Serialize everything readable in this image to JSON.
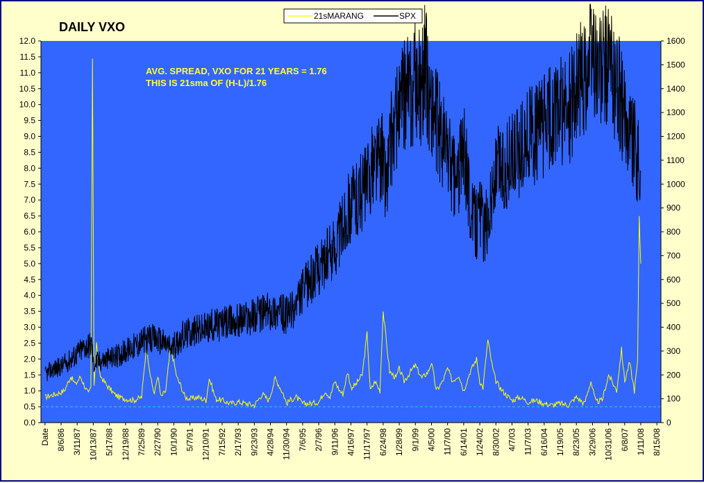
{
  "chart_data": {
    "type": "line",
    "title": "DAILY VXO",
    "annotations": [
      "AVG. SPREAD, VXO FOR 21 YEARS = 1.76",
      "THIS IS 21sma OF (H-L)/1.76"
    ],
    "legend": {
      "position": "top-center",
      "entries": [
        "21sMARANG",
        "SPX"
      ]
    },
    "x_tick_labels": [
      "Date",
      "8/6/86",
      "3/11/87",
      "10/13/87",
      "5/17/88",
      "12/19/88",
      "7/25/89",
      "2/27/90",
      "10/1/90",
      "5/7/91",
      "12/10/91",
      "7/15/92",
      "2/17/93",
      "9/23/93",
      "4/28/94",
      "11/30/94",
      "7/6/95",
      "2/7/96",
      "9/11/96",
      "4/16/97",
      "11/17/97",
      "6/24/98",
      "1/28/99",
      "9/1/99",
      "4/5/00",
      "11/7/00",
      "6/14/01",
      "1/24/02",
      "8/30/02",
      "4/7/03",
      "11/7/03",
      "6/16/04",
      "1/19/05",
      "8/23/05",
      "3/29/06",
      "10/31/06",
      "6/8/07",
      "1/11/08",
      "8/15/08"
    ],
    "y_left": {
      "ylim": [
        0,
        12
      ],
      "ticks": [
        "0.0",
        "0.5",
        "1.0",
        "1.5",
        "2.0",
        "2.5",
        "3.0",
        "3.5",
        "4.0",
        "4.5",
        "5.0",
        "5.5",
        "6.0",
        "6.5",
        "7.0",
        "7.5",
        "8.0",
        "8.5",
        "9.0",
        "9.5",
        "10.0",
        "10.5",
        "11.0",
        "11.5",
        "12.0"
      ]
    },
    "y_right": {
      "ylim": [
        0,
        1600
      ],
      "ticks": [
        "0",
        "100",
        "200",
        "300",
        "400",
        "500",
        "600",
        "700",
        "800",
        "900",
        "1000",
        "1100",
        "1200",
        "1300",
        "1400",
        "1500",
        "1600"
      ]
    },
    "reference_line": {
      "axis": "left",
      "value": 0.5,
      "style": "dashed",
      "color": "#33cccc"
    },
    "colors": {
      "plot_bg": "#3366ff",
      "spx": "#000000",
      "marang": "#ffff00",
      "page_bg": "#ffffcc",
      "border": "#000080"
    },
    "series": [
      {
        "name": "21sMARANG",
        "axis": "left",
        "x": [
          0,
          0.3,
          0.7,
          1.2,
          1.6,
          1.9,
          2.2,
          2.5,
          2.7,
          2.85,
          2.95,
          3.05,
          3.2,
          3.4,
          3.8,
          4.3,
          4.6,
          5.0,
          5.5,
          6.0,
          6.3,
          6.6,
          6.8,
          7.0,
          7.2,
          7.5,
          7.8,
          8.2,
          8.4,
          8.7,
          9.0,
          9.5,
          10.0,
          10.2,
          10.6,
          11.0,
          11.5,
          12.0,
          12.5,
          13.0,
          13.5,
          13.9,
          14.3,
          14.8,
          15.0,
          15.2,
          15.6,
          16.0,
          16.5,
          17.0,
          17.4,
          17.7,
          18.0,
          18.3,
          18.5,
          18.8,
          19.0,
          19.3,
          19.7,
          20.0,
          20.2,
          20.5,
          20.8,
          21.0,
          21.4,
          21.8,
          22.0,
          22.3,
          22.7,
          23.0,
          23.4,
          23.8,
          24.0,
          24.3,
          24.7,
          25.0,
          25.3,
          25.7,
          26.0,
          26.4,
          26.8,
          27.0,
          27.2,
          27.5,
          27.8,
          28.0,
          28.4,
          28.8,
          29.0,
          29.5,
          30.0,
          30.5,
          31.0,
          31.5,
          32.0,
          32.5,
          33.0,
          33.5,
          33.9,
          34.2,
          34.6,
          35.0,
          35.5,
          35.8,
          36.0,
          36.3,
          36.6,
          36.8,
          36.9,
          37.0
        ],
        "values": [
          0.8,
          0.85,
          0.9,
          1.0,
          1.45,
          1.2,
          1.45,
          1.1,
          0.9,
          1.1,
          11.3,
          1.2,
          2.5,
          1.5,
          1.2,
          0.9,
          0.8,
          0.75,
          0.7,
          0.8,
          2.4,
          1.3,
          0.9,
          1.5,
          0.8,
          1.0,
          2.4,
          1.4,
          1.2,
          0.8,
          0.75,
          0.8,
          0.7,
          1.4,
          0.75,
          0.7,
          0.6,
          0.65,
          0.6,
          0.55,
          0.9,
          0.7,
          1.4,
          0.9,
          0.6,
          0.7,
          0.8,
          0.6,
          0.6,
          0.65,
          1.0,
          0.8,
          1.3,
          1.0,
          0.9,
          1.6,
          1.1,
          1.2,
          1.5,
          2.8,
          1.0,
          1.3,
          1.0,
          3.5,
          1.6,
          1.4,
          1.7,
          1.3,
          1.6,
          1.8,
          1.4,
          1.6,
          1.9,
          1.0,
          1.3,
          1.7,
          1.3,
          1.5,
          1.0,
          1.6,
          2.0,
          1.3,
          1.1,
          2.6,
          1.7,
          1.3,
          1.0,
          0.8,
          0.7,
          0.8,
          0.65,
          0.7,
          0.6,
          0.55,
          0.6,
          0.55,
          0.8,
          0.6,
          1.3,
          0.65,
          0.7,
          1.5,
          1.0,
          2.3,
          1.3,
          1.9,
          1.0,
          1.9,
          6.5,
          5.0
        ]
      },
      {
        "name": "SPX",
        "axis": "right",
        "x": [
          0,
          0.5,
          1.0,
          1.5,
          2.0,
          2.5,
          2.9,
          3.0,
          3.2,
          3.5,
          4.0,
          4.5,
          5.0,
          5.5,
          6.0,
          6.5,
          7.0,
          7.5,
          7.9,
          8.1,
          8.5,
          9.0,
          9.5,
          10.0,
          10.5,
          11.0,
          11.5,
          12.0,
          12.5,
          13.0,
          13.5,
          14.0,
          14.5,
          15.0,
          15.5,
          16.0,
          16.5,
          17.0,
          17.5,
          18.0,
          18.5,
          19.0,
          19.5,
          20.0,
          20.5,
          20.9,
          21.2,
          21.5,
          22.0,
          22.5,
          22.8,
          23.0,
          23.3,
          23.6,
          23.9,
          24.2,
          24.6,
          25.0,
          25.5,
          26.0,
          26.5,
          26.8,
          27.0,
          27.3,
          27.6,
          27.9,
          28.2,
          28.5,
          28.8,
          29.2,
          29.6,
          30.0,
          30.5,
          31.0,
          31.5,
          32.0,
          32.5,
          33.0,
          33.5,
          34.0,
          34.5,
          35.0,
          35.5,
          35.8,
          36.0,
          36.2,
          36.5,
          36.8,
          37.0
        ],
        "values": [
          200,
          225,
          235,
          260,
          290,
          320,
          330,
          245,
          255,
          260,
          270,
          280,
          300,
          320,
          340,
          350,
          350,
          330,
          310,
          330,
          360,
          380,
          385,
          395,
          410,
          415,
          420,
          430,
          440,
          450,
          460,
          470,
          465,
          450,
          480,
          550,
          600,
          650,
          690,
          740,
          830,
          920,
          950,
          1000,
          1100,
          1120,
          1000,
          1200,
          1300,
          1400,
          1350,
          1450,
          1400,
          1500,
          1350,
          1300,
          1200,
          1150,
          1000,
          1150,
          870,
          830,
          900,
          800,
          900,
          1000,
          1100,
          1050,
          1100,
          1100,
          1150,
          1200,
          1200,
          1250,
          1280,
          1300,
          1300,
          1400,
          1450,
          1550,
          1450,
          1500,
          1400,
          1350,
          1250,
          1280,
          1200,
          1100,
          1050
        ]
      }
    ]
  }
}
